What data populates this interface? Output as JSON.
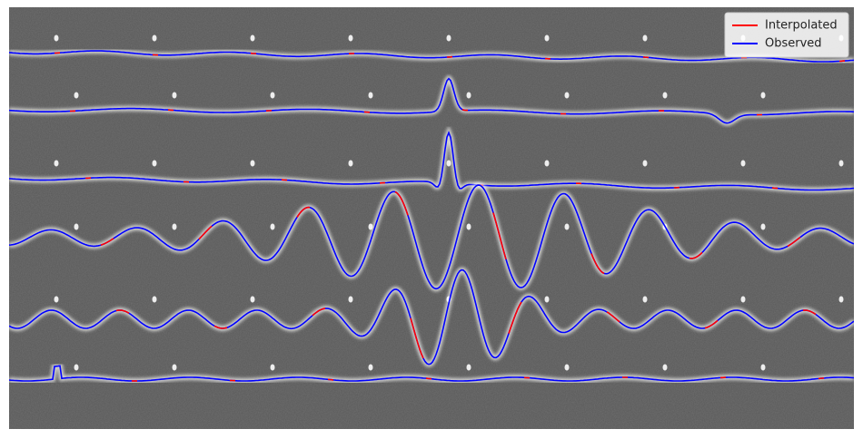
{
  "legend": {
    "entries": [
      {
        "label": "Interpolated",
        "color": "#ff0000"
      },
      {
        "label": "Observed",
        "color": "#0000ff"
      }
    ]
  }
}
